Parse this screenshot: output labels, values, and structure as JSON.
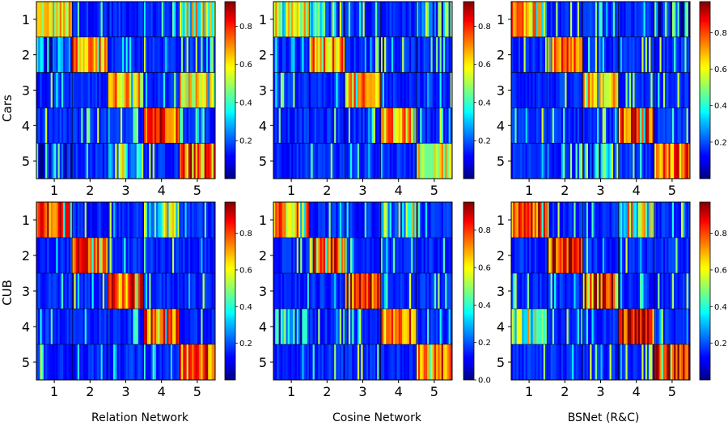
{
  "figure": {
    "row_labels": [
      "Cars",
      "CUB"
    ],
    "column_labels": [
      "Relation Network",
      "Cosine Network",
      "BSNet (R&C)"
    ]
  },
  "chart_data": [
    {
      "type": "heatmap",
      "dataset": "Cars",
      "method": "Relation Network",
      "x_ticks": [
        "1",
        "2",
        "3",
        "4",
        "5"
      ],
      "y_ticks": [
        "1",
        "2",
        "3",
        "4",
        "5"
      ],
      "colormap": "jet",
      "colorbar_ticks": [
        "0.2",
        "0.4",
        "0.6",
        "0.8"
      ],
      "vmin": 0.0,
      "vmax": 0.93,
      "block_mean": [
        [
          0.62,
          0.08,
          0.1,
          0.08,
          0.5
        ],
        [
          0.25,
          0.72,
          0.08,
          0.1,
          0.1
        ],
        [
          0.1,
          0.1,
          0.7,
          0.1,
          0.62
        ],
        [
          0.06,
          0.12,
          0.06,
          0.88,
          0.06
        ],
        [
          0.22,
          0.1,
          0.45,
          0.1,
          0.82
        ]
      ]
    },
    {
      "type": "heatmap",
      "dataset": "Cars",
      "method": "Cosine Network",
      "x_ticks": [
        "1",
        "2",
        "3",
        "4",
        "5"
      ],
      "y_ticks": [
        "1",
        "2",
        "3",
        "4",
        "5"
      ],
      "colormap": "jet",
      "colorbar_ticks": [
        "0.2",
        "0.4",
        "0.6",
        "0.8"
      ],
      "vmin": 0.0,
      "vmax": 0.93,
      "block_mean": [
        [
          0.6,
          0.35,
          0.1,
          0.15,
          0.3
        ],
        [
          0.15,
          0.72,
          0.08,
          0.1,
          0.1
        ],
        [
          0.15,
          0.1,
          0.68,
          0.15,
          0.1
        ],
        [
          0.1,
          0.1,
          0.1,
          0.68,
          0.1
        ],
        [
          0.12,
          0.08,
          0.12,
          0.08,
          0.62
        ]
      ]
    },
    {
      "type": "heatmap",
      "dataset": "Cars",
      "method": "BSNet (R&C)",
      "x_ticks": [
        "1",
        "2",
        "3",
        "4",
        "5"
      ],
      "y_ticks": [
        "1",
        "2",
        "3",
        "4",
        "5"
      ],
      "colormap": "jet",
      "colorbar_ticks": [
        "0.2",
        "0.4",
        "0.6",
        "0.8"
      ],
      "vmin": 0.0,
      "vmax": 0.97,
      "block_mean": [
        [
          0.72,
          0.06,
          0.1,
          0.06,
          0.25
        ],
        [
          0.15,
          0.74,
          0.08,
          0.08,
          0.1
        ],
        [
          0.1,
          0.1,
          0.68,
          0.1,
          0.15
        ],
        [
          0.08,
          0.12,
          0.08,
          0.82,
          0.08
        ],
        [
          0.2,
          0.1,
          0.3,
          0.06,
          0.78
        ]
      ]
    },
    {
      "type": "heatmap",
      "dataset": "CUB",
      "method": "Relation Network",
      "x_ticks": [
        "1",
        "2",
        "3",
        "4",
        "5"
      ],
      "y_ticks": [
        "1",
        "2",
        "3",
        "4",
        "5"
      ],
      "colormap": "jet",
      "colorbar_ticks": [
        "0.2",
        "0.4",
        "0.6",
        "0.8"
      ],
      "vmin": 0.0,
      "vmax": 0.97,
      "block_mean": [
        [
          0.82,
          0.06,
          0.1,
          0.45,
          0.06
        ],
        [
          0.06,
          0.8,
          0.1,
          0.1,
          0.08
        ],
        [
          0.1,
          0.08,
          0.8,
          0.1,
          0.1
        ],
        [
          0.12,
          0.06,
          0.08,
          0.78,
          0.06
        ],
        [
          0.06,
          0.06,
          0.12,
          0.06,
          0.82
        ]
      ]
    },
    {
      "type": "heatmap",
      "dataset": "CUB",
      "method": "Cosine Network",
      "x_ticks": [
        "1",
        "2",
        "3",
        "4",
        "5"
      ],
      "y_ticks": [
        "1",
        "2",
        "3",
        "4",
        "5"
      ],
      "colormap": "jet",
      "colorbar_ticks": [
        "0.0",
        "0.2",
        "0.4",
        "0.6",
        "0.8"
      ],
      "vmin": 0.0,
      "vmax": 0.95,
      "block_mean": [
        [
          0.72,
          0.06,
          0.12,
          0.4,
          0.06
        ],
        [
          0.06,
          0.82,
          0.1,
          0.06,
          0.1
        ],
        [
          0.1,
          0.06,
          0.84,
          0.1,
          0.1
        ],
        [
          0.3,
          0.08,
          0.1,
          0.8,
          0.08
        ],
        [
          0.06,
          0.06,
          0.12,
          0.06,
          0.78
        ]
      ]
    },
    {
      "type": "heatmap",
      "dataset": "CUB",
      "method": "BSNet (R&C)",
      "x_ticks": [
        "1",
        "2",
        "3",
        "4",
        "5"
      ],
      "y_ticks": [
        "1",
        "2",
        "3",
        "4",
        "5"
      ],
      "colormap": "jet",
      "colorbar_ticks": [
        "0.2",
        "0.4",
        "0.6",
        "0.8"
      ],
      "vmin": 0.0,
      "vmax": 0.97,
      "block_mean": [
        [
          0.84,
          0.06,
          0.06,
          0.55,
          0.06
        ],
        [
          0.06,
          0.86,
          0.06,
          0.06,
          0.06
        ],
        [
          0.12,
          0.06,
          0.86,
          0.06,
          0.06
        ],
        [
          0.45,
          0.06,
          0.06,
          0.86,
          0.06
        ],
        [
          0.06,
          0.1,
          0.12,
          0.06,
          0.9
        ]
      ]
    }
  ]
}
